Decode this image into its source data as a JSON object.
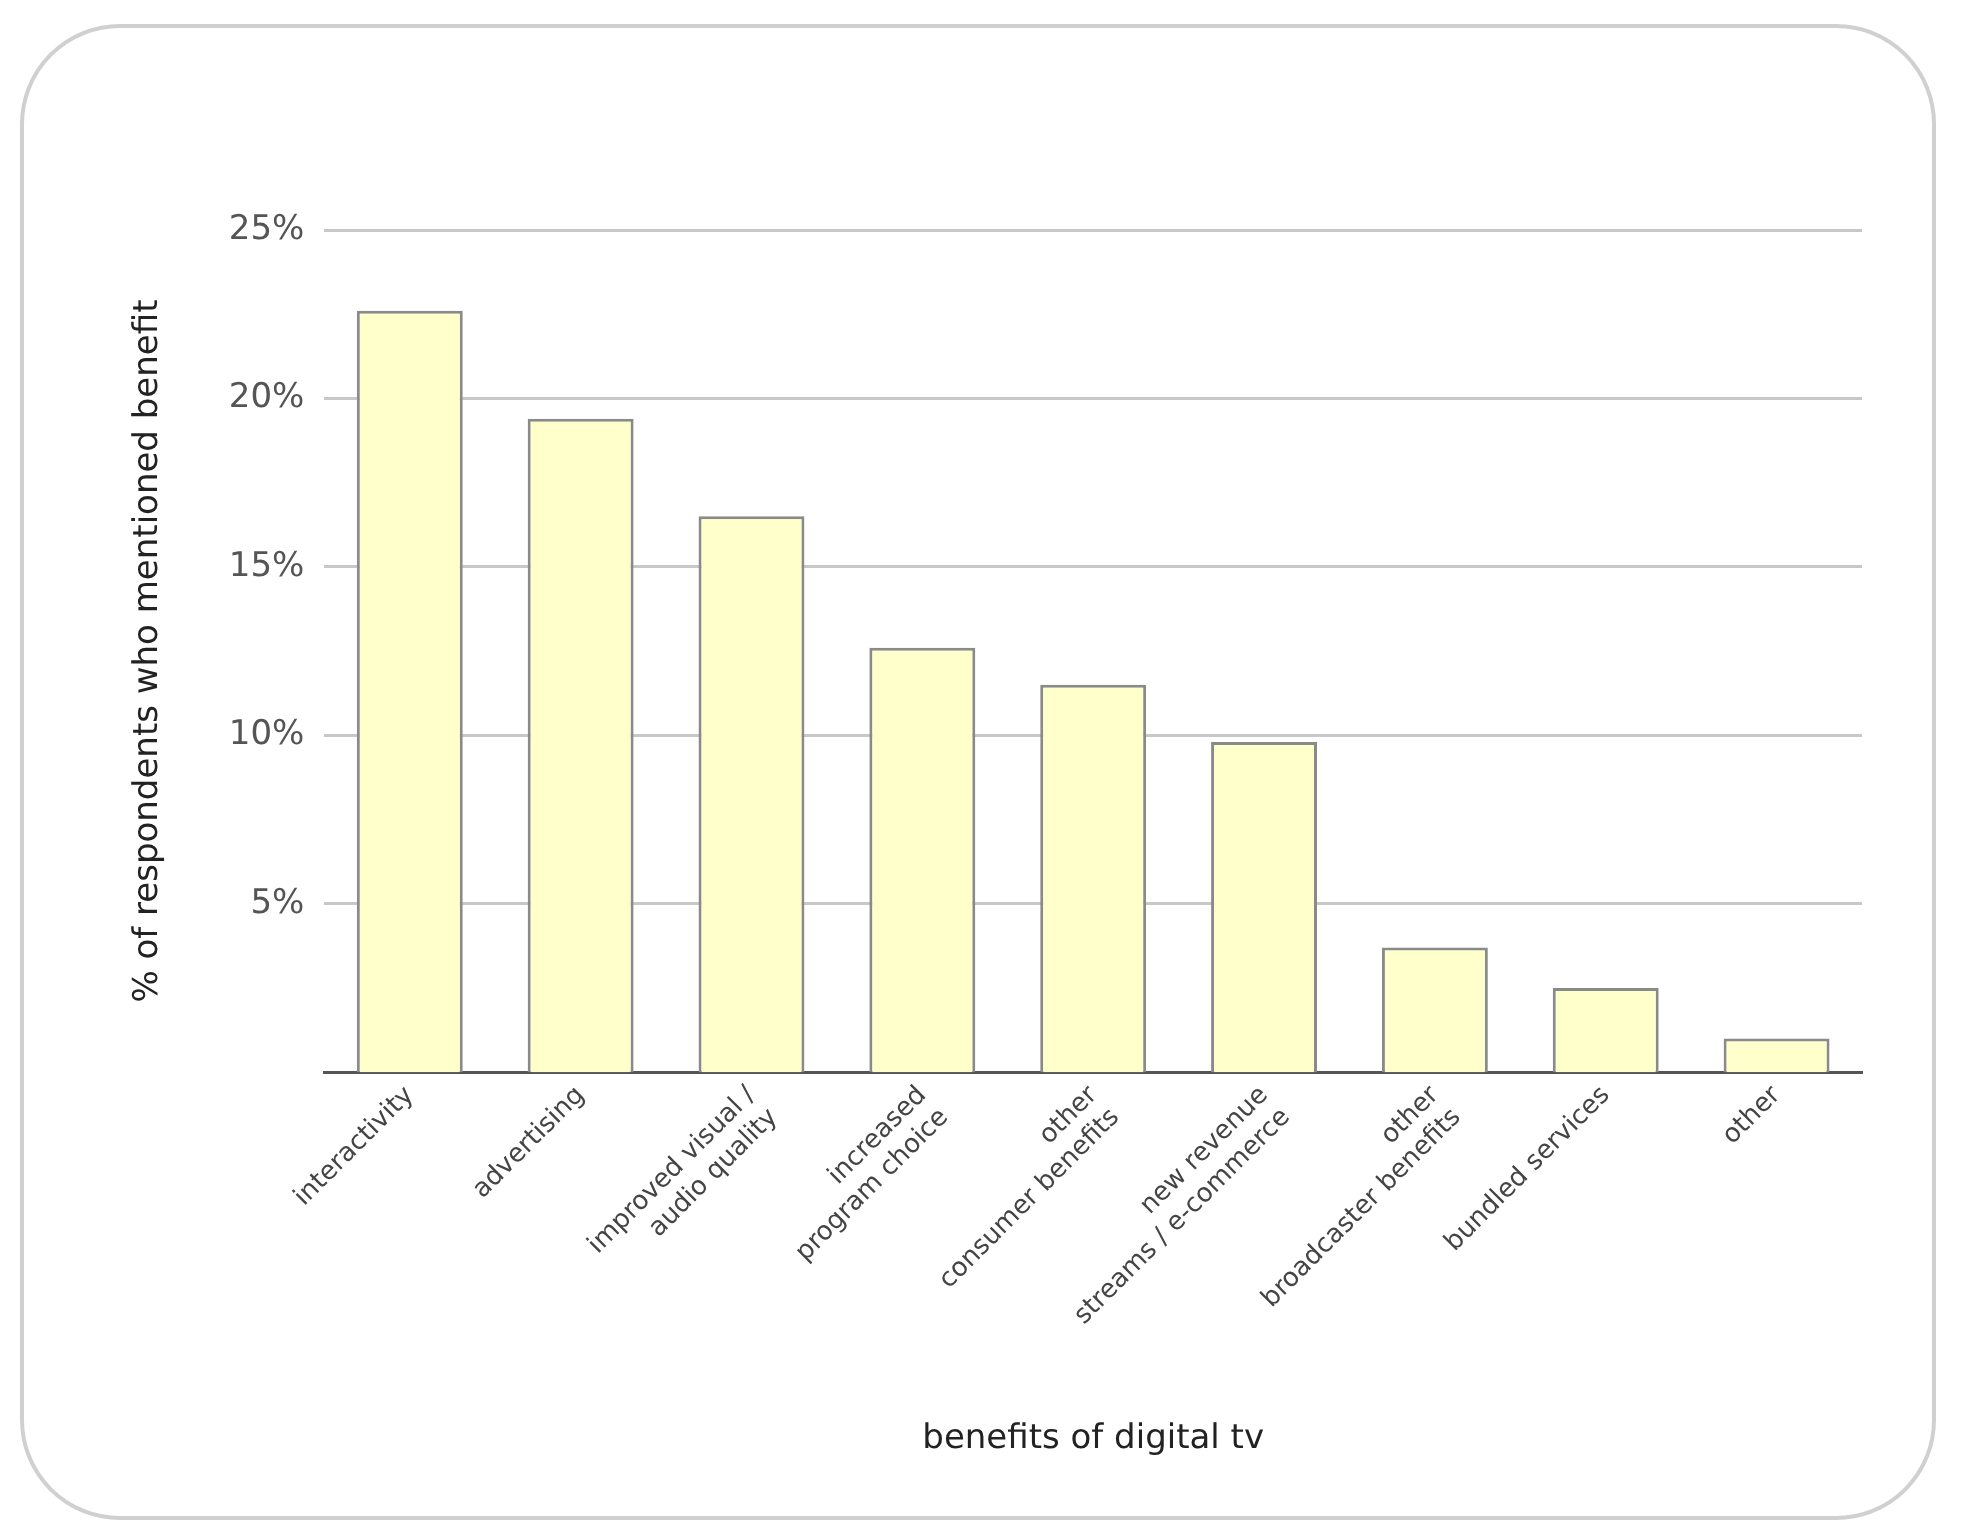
{
  "chart_data": {
    "type": "bar",
    "xlabel": "benefits of digital tv",
    "ylabel": "% of respondents who mentioned benefit",
    "categories": [
      "interactivity",
      "advertising",
      "improved visual /\naudio quality",
      "increased\nprogram choice",
      "other\nconsumer benefits",
      "new revenue\nstreams / e-commerce",
      "other\nbroadcaster benefits",
      "bundled services",
      "other"
    ],
    "values": [
      22.6,
      19.4,
      16.5,
      12.6,
      11.5,
      9.8,
      3.7,
      2.5,
      1.0
    ],
    "color": "#ffffcc",
    "ylim": [
      0,
      25
    ],
    "yticks": [
      {
        "value": 5,
        "label": "5%"
      },
      {
        "value": 10,
        "label": "10%"
      },
      {
        "value": 15,
        "label": "15%"
      },
      {
        "value": 20,
        "label": "20%"
      },
      {
        "value": 25,
        "label": "25%"
      }
    ],
    "grid": "y",
    "legend": false
  }
}
